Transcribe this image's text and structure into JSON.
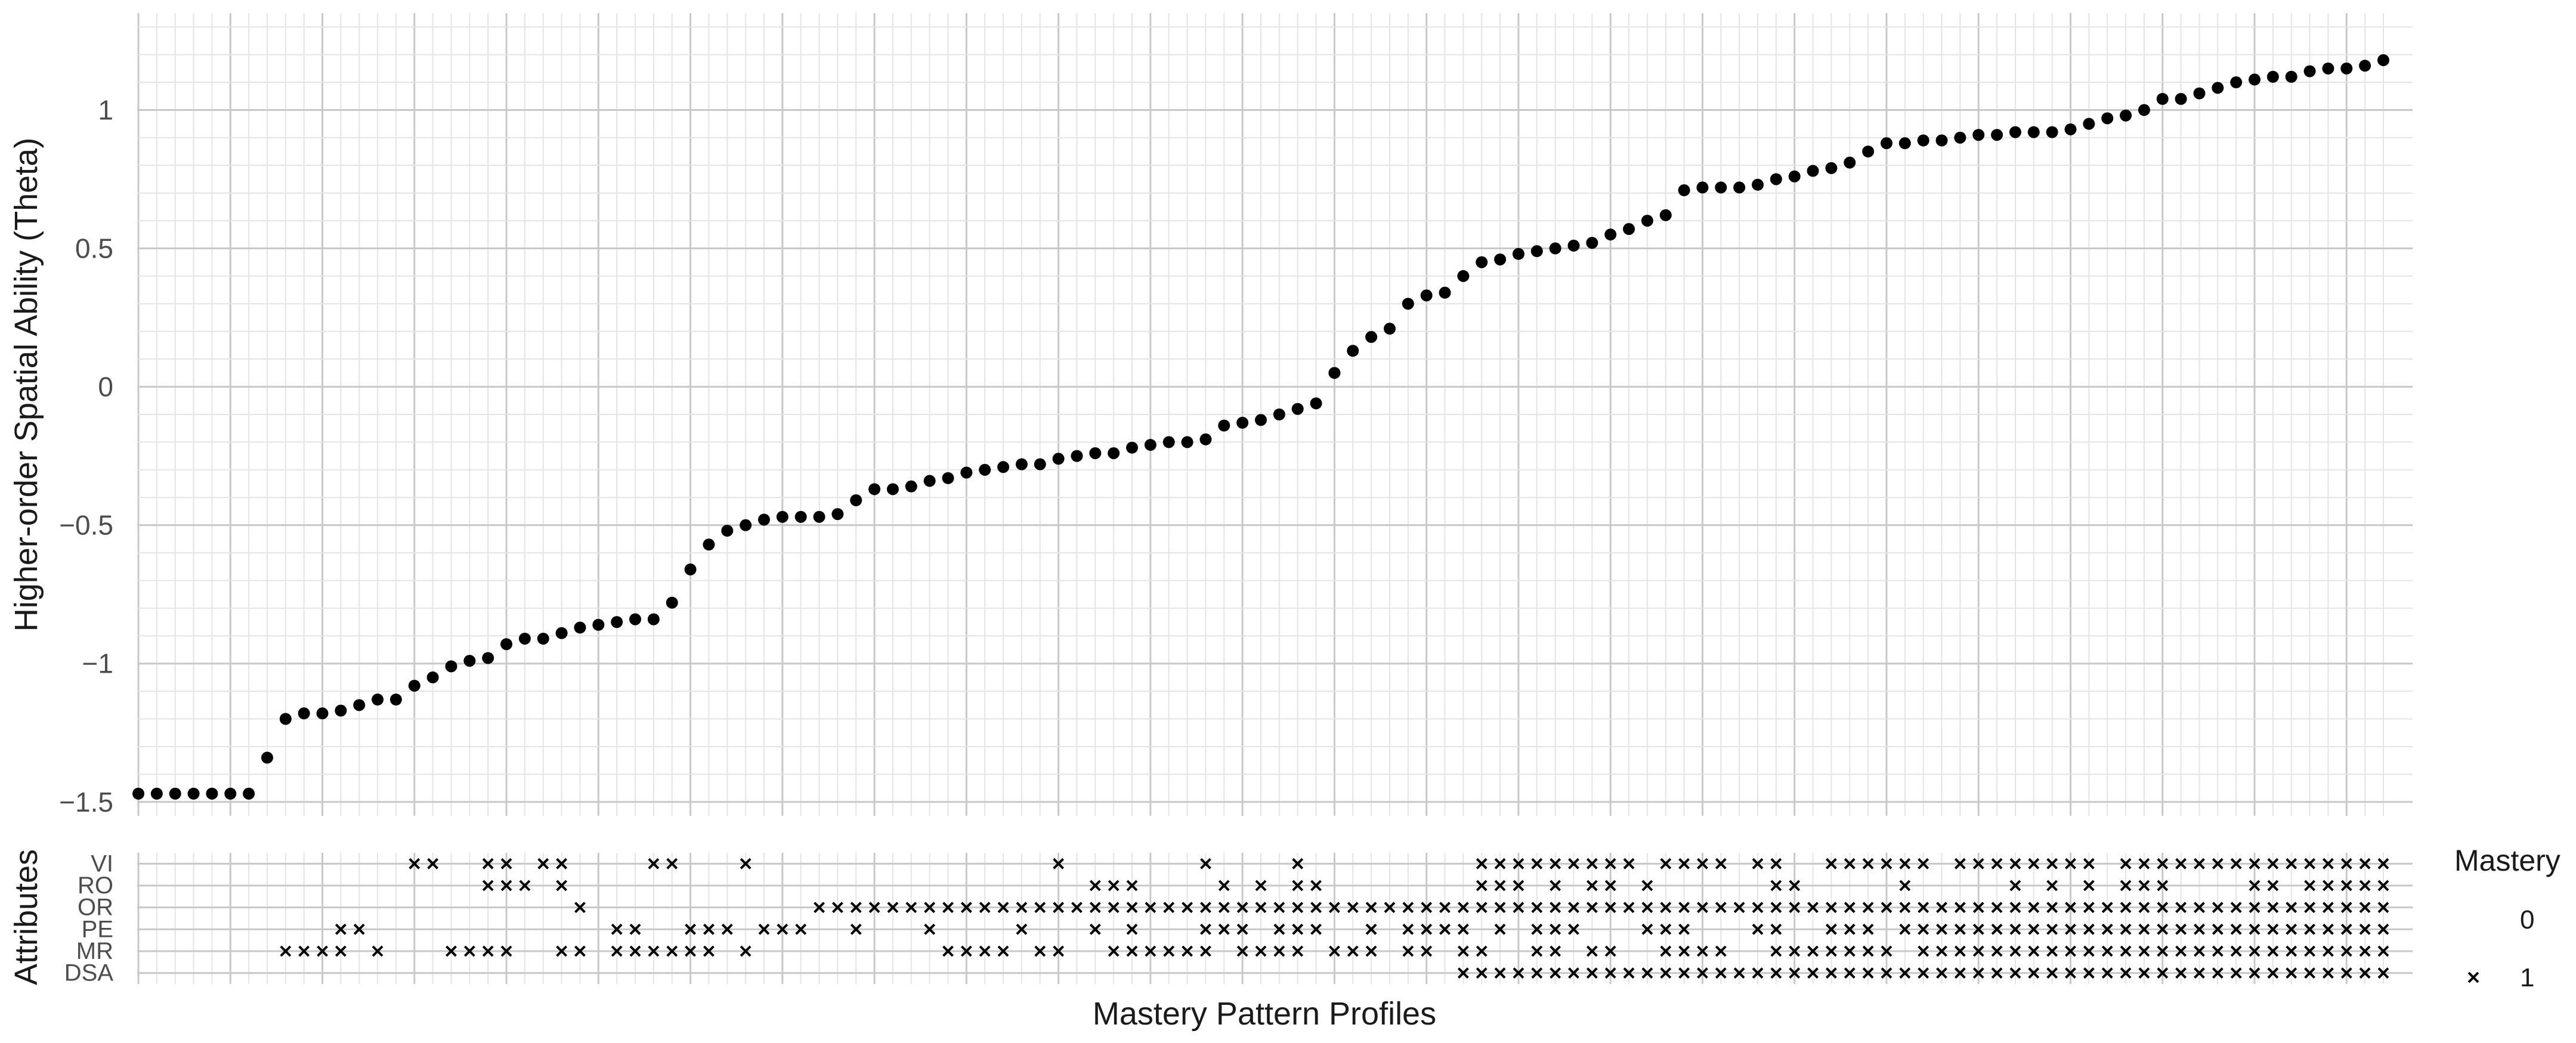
{
  "chart_data": [
    {
      "type": "scatter",
      "title": "",
      "xlabel": "",
      "ylabel": "Higher-order Spatial Ability (Theta)",
      "ylim": [
        -1.55,
        1.35
      ],
      "yticks": [
        1,
        0.5,
        0,
        -0.5,
        -1,
        -1.5
      ],
      "ytick_labels": [
        "1",
        "0.5",
        "0",
        "-0.5",
        "-1",
        "-1.5"
      ],
      "grid": true,
      "point_color": "#000000",
      "values": [
        -1.47,
        -1.47,
        -1.47,
        -1.47,
        -1.47,
        -1.47,
        -1.47,
        -1.34,
        -1.2,
        -1.18,
        -1.18,
        -1.17,
        -1.15,
        -1.13,
        -1.13,
        -1.08,
        -1.05,
        -1.01,
        -0.99,
        -0.98,
        -0.93,
        -0.91,
        -0.91,
        -0.89,
        -0.87,
        -0.86,
        -0.85,
        -0.84,
        -0.84,
        -0.78,
        -0.66,
        -0.57,
        -0.52,
        -0.5,
        -0.48,
        -0.47,
        -0.47,
        -0.47,
        -0.46,
        -0.41,
        -0.37,
        -0.37,
        -0.36,
        -0.34,
        -0.33,
        -0.31,
        -0.3,
        -0.29,
        -0.28,
        -0.28,
        -0.26,
        -0.25,
        -0.24,
        -0.24,
        -0.22,
        -0.21,
        -0.2,
        -0.2,
        -0.19,
        -0.14,
        -0.13,
        -0.12,
        -0.1,
        -0.08,
        -0.06,
        0.05,
        0.13,
        0.18,
        0.21,
        0.3,
        0.33,
        0.34,
        0.4,
        0.45,
        0.46,
        0.48,
        0.49,
        0.5,
        0.51,
        0.52,
        0.55,
        0.57,
        0.6,
        0.62,
        0.71,
        0.72,
        0.72,
        0.72,
        0.73,
        0.75,
        0.76,
        0.78,
        0.79,
        0.81,
        0.85,
        0.88,
        0.88,
        0.89,
        0.89,
        0.9,
        0.91,
        0.91,
        0.92,
        0.92,
        0.92,
        0.93,
        0.95,
        0.97,
        0.98,
        1.0,
        1.04,
        1.04,
        1.06,
        1.08,
        1.1,
        1.11,
        1.12,
        1.12,
        1.14,
        1.15,
        1.15,
        1.16,
        1.18
      ]
    },
    {
      "type": "heatmap",
      "xlabel": "Mastery Pattern Profiles",
      "ylabel": "Attributes",
      "rows": [
        "VI",
        "RO",
        "OR",
        "PE",
        "MR",
        "DSA"
      ],
      "legend_title": "Mastery",
      "legend_placement": "right",
      "legend_entries": [
        {
          "label": "0",
          "marker": "none"
        },
        {
          "label": "1",
          "marker": "x"
        }
      ],
      "mastery_strings": {
        "VI": "0000000000000001100110110000110001000000000000000010000000100001000000000111111111011110110011111101111111101111111111111111111111111",
        "RO": "0000000000000000000111010000000000000000000000000000111000010101100000000111010110100000011000001000001010101110000110111111111111111",
        "OR": "0000000000000000000000001000000000000111111111111111111111111111111111111111111111111111111111111111111111111111111111111111111111111",
        "PE": "0000000000011000000000000011001110111001000100001000101000111011100101111010111000111000110011101111111111111111111111111111111111111",
        "MR": "0000000011110100011110011011111101000000000011110110011111101111011101101100110110011110011111110111111111111111111111111111111111111",
        "DSA": "0000000000000000000000000000000000000000000000000000000000000000000000001111111111111111111111111111111111111111111111111111111111111"
      }
    }
  ]
}
